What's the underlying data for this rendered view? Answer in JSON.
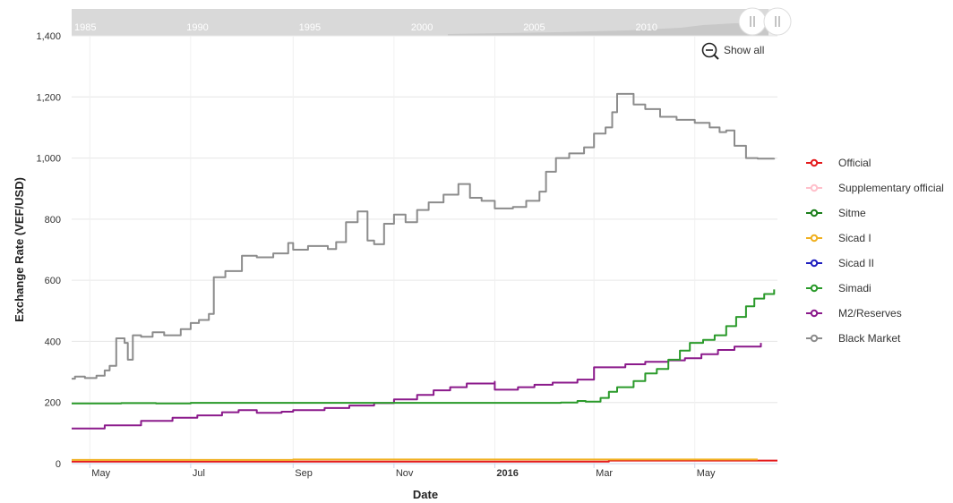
{
  "navigator": {
    "year_labels": [
      "1985",
      "1990",
      "1995",
      "2000",
      "2005",
      "2010"
    ]
  },
  "controls": {
    "show_all_label": "Show all",
    "zoom_out_icon": "zoom-out-icon",
    "handle_icon": "range-handle-icon"
  },
  "chart_data": {
    "type": "line",
    "title": "",
    "xlabel": "Date",
    "ylabel": "Exchange Rate (VEF/USD)",
    "ylim": [
      0,
      1400
    ],
    "y_ticks": [
      0,
      200,
      400,
      600,
      800,
      1000,
      1200,
      1400
    ],
    "y_tick_labels": [
      "0",
      "200",
      "400",
      "600",
      "800",
      "1,000",
      "1,200",
      "1,400"
    ],
    "x_range": [
      "2015-04-20",
      "2016-06-20"
    ],
    "x_ticks": [
      {
        "date": "2015-05-01",
        "label": "May",
        "bold": false
      },
      {
        "date": "2015-07-01",
        "label": "Jul",
        "bold": false
      },
      {
        "date": "2015-09-01",
        "label": "Sep",
        "bold": false
      },
      {
        "date": "2015-11-01",
        "label": "Nov",
        "bold": false
      },
      {
        "date": "2016-01-01",
        "label": "2016",
        "bold": true
      },
      {
        "date": "2016-03-01",
        "label": "Mar",
        "bold": false
      },
      {
        "date": "2016-05-01",
        "label": "May",
        "bold": false
      }
    ],
    "grid": true,
    "step": true,
    "legend_position": "right",
    "series": [
      {
        "name": "Official",
        "color": "#e41a1c",
        "points": [
          [
            "2015-04-20",
            6.3
          ],
          [
            "2016-03-01",
            6.3
          ],
          [
            "2016-03-10",
            10
          ],
          [
            "2016-06-20",
            10
          ]
        ]
      },
      {
        "name": "Supplementary official",
        "color": "#ffc0cb",
        "points": []
      },
      {
        "name": "Sitme",
        "color": "#1b7e1b",
        "points": []
      },
      {
        "name": "Sicad I",
        "color": "#f0b020",
        "points": [
          [
            "2015-04-20",
            12
          ],
          [
            "2015-09-01",
            13.5
          ],
          [
            "2016-03-10",
            13.5
          ],
          [
            "2016-06-08",
            13.5
          ]
        ]
      },
      {
        "name": "Sicad II",
        "color": "#1f1fbf",
        "points": []
      },
      {
        "name": "Simadi",
        "color": "#2a9a2a",
        "points": [
          [
            "2015-04-20",
            197
          ],
          [
            "2015-05-20",
            198
          ],
          [
            "2015-06-10",
            197
          ],
          [
            "2015-07-01",
            199
          ],
          [
            "2015-09-01",
            199
          ],
          [
            "2015-11-01",
            199
          ],
          [
            "2016-01-01",
            199
          ],
          [
            "2016-02-10",
            200
          ],
          [
            "2016-02-20",
            205
          ],
          [
            "2016-02-25",
            203
          ],
          [
            "2016-03-05",
            215
          ],
          [
            "2016-03-10",
            235
          ],
          [
            "2016-03-15",
            250
          ],
          [
            "2016-03-25",
            270
          ],
          [
            "2016-04-01",
            295
          ],
          [
            "2016-04-08",
            310
          ],
          [
            "2016-04-15",
            340
          ],
          [
            "2016-04-22",
            370
          ],
          [
            "2016-04-28",
            395
          ],
          [
            "2016-05-06",
            405
          ],
          [
            "2016-05-13",
            420
          ],
          [
            "2016-05-20",
            450
          ],
          [
            "2016-05-26",
            480
          ],
          [
            "2016-06-01",
            515
          ],
          [
            "2016-06-06",
            540
          ],
          [
            "2016-06-12",
            555
          ],
          [
            "2016-06-18",
            570
          ]
        ]
      },
      {
        "name": "M2/Reserves",
        "color": "#8b1a8b",
        "points": [
          [
            "2015-04-20",
            115
          ],
          [
            "2015-05-10",
            125
          ],
          [
            "2015-06-01",
            140
          ],
          [
            "2015-06-20",
            150
          ],
          [
            "2015-07-05",
            158
          ],
          [
            "2015-07-20",
            168
          ],
          [
            "2015-07-30",
            175
          ],
          [
            "2015-08-10",
            166
          ],
          [
            "2015-08-25",
            170
          ],
          [
            "2015-09-01",
            175
          ],
          [
            "2015-09-20",
            182
          ],
          [
            "2015-10-05",
            190
          ],
          [
            "2015-10-20",
            198
          ],
          [
            "2015-11-01",
            210
          ],
          [
            "2015-11-15",
            225
          ],
          [
            "2015-11-25",
            240
          ],
          [
            "2015-12-05",
            250
          ],
          [
            "2015-12-15",
            262
          ],
          [
            "2016-01-01",
            268
          ],
          [
            "2016-01-01",
            242
          ],
          [
            "2016-01-15",
            250
          ],
          [
            "2016-01-25",
            258
          ],
          [
            "2016-02-05",
            265
          ],
          [
            "2016-02-20",
            275
          ],
          [
            "2016-03-01",
            315
          ],
          [
            "2016-03-20",
            325
          ],
          [
            "2016-04-01",
            333
          ],
          [
            "2016-04-15",
            338
          ],
          [
            "2016-04-25",
            345
          ],
          [
            "2016-05-05",
            358
          ],
          [
            "2016-05-15",
            372
          ],
          [
            "2016-05-25",
            383
          ],
          [
            "2016-06-10",
            395
          ]
        ]
      },
      {
        "name": "Black Market",
        "color": "#8c8c8c",
        "points": [
          [
            "2015-04-20",
            278
          ],
          [
            "2015-04-22",
            285
          ],
          [
            "2015-04-28",
            280
          ],
          [
            "2015-05-05",
            288
          ],
          [
            "2015-05-10",
            305
          ],
          [
            "2015-05-13",
            320
          ],
          [
            "2015-05-17",
            410
          ],
          [
            "2015-05-22",
            395
          ],
          [
            "2015-05-24",
            340
          ],
          [
            "2015-05-27",
            420
          ],
          [
            "2015-06-01",
            415
          ],
          [
            "2015-06-08",
            430
          ],
          [
            "2015-06-15",
            420
          ],
          [
            "2015-06-25",
            440
          ],
          [
            "2015-07-01",
            460
          ],
          [
            "2015-07-06",
            470
          ],
          [
            "2015-07-12",
            490
          ],
          [
            "2015-07-15",
            610
          ],
          [
            "2015-07-22",
            630
          ],
          [
            "2015-08-01",
            680
          ],
          [
            "2015-08-10",
            675
          ],
          [
            "2015-08-20",
            688
          ],
          [
            "2015-08-29",
            722
          ],
          [
            "2015-09-01",
            700
          ],
          [
            "2015-09-10",
            712
          ],
          [
            "2015-09-22",
            702
          ],
          [
            "2015-09-27",
            725
          ],
          [
            "2015-10-03",
            790
          ],
          [
            "2015-10-10",
            825
          ],
          [
            "2015-10-16",
            730
          ],
          [
            "2015-10-20",
            718
          ],
          [
            "2015-10-26",
            785
          ],
          [
            "2015-11-01",
            815
          ],
          [
            "2015-11-08",
            790
          ],
          [
            "2015-11-15",
            830
          ],
          [
            "2015-11-22",
            855
          ],
          [
            "2015-12-01",
            880
          ],
          [
            "2015-12-10",
            915
          ],
          [
            "2015-12-17",
            870
          ],
          [
            "2015-12-24",
            860
          ],
          [
            "2016-01-01",
            835
          ],
          [
            "2016-01-12",
            840
          ],
          [
            "2016-01-20",
            860
          ],
          [
            "2016-01-28",
            890
          ],
          [
            "2016-02-01",
            955
          ],
          [
            "2016-02-07",
            1000
          ],
          [
            "2016-02-15",
            1015
          ],
          [
            "2016-02-24",
            1035
          ],
          [
            "2016-03-01",
            1080
          ],
          [
            "2016-03-08",
            1100
          ],
          [
            "2016-03-12",
            1150
          ],
          [
            "2016-03-15",
            1210
          ],
          [
            "2016-03-25",
            1175
          ],
          [
            "2016-04-01",
            1160
          ],
          [
            "2016-04-10",
            1135
          ],
          [
            "2016-04-20",
            1125
          ],
          [
            "2016-05-01",
            1115
          ],
          [
            "2016-05-10",
            1100
          ],
          [
            "2016-05-16",
            1085
          ],
          [
            "2016-05-20",
            1090
          ],
          [
            "2016-05-25",
            1040
          ],
          [
            "2016-06-01",
            1000
          ],
          [
            "2016-06-08",
            998
          ],
          [
            "2016-06-18",
            1000
          ]
        ]
      }
    ]
  }
}
